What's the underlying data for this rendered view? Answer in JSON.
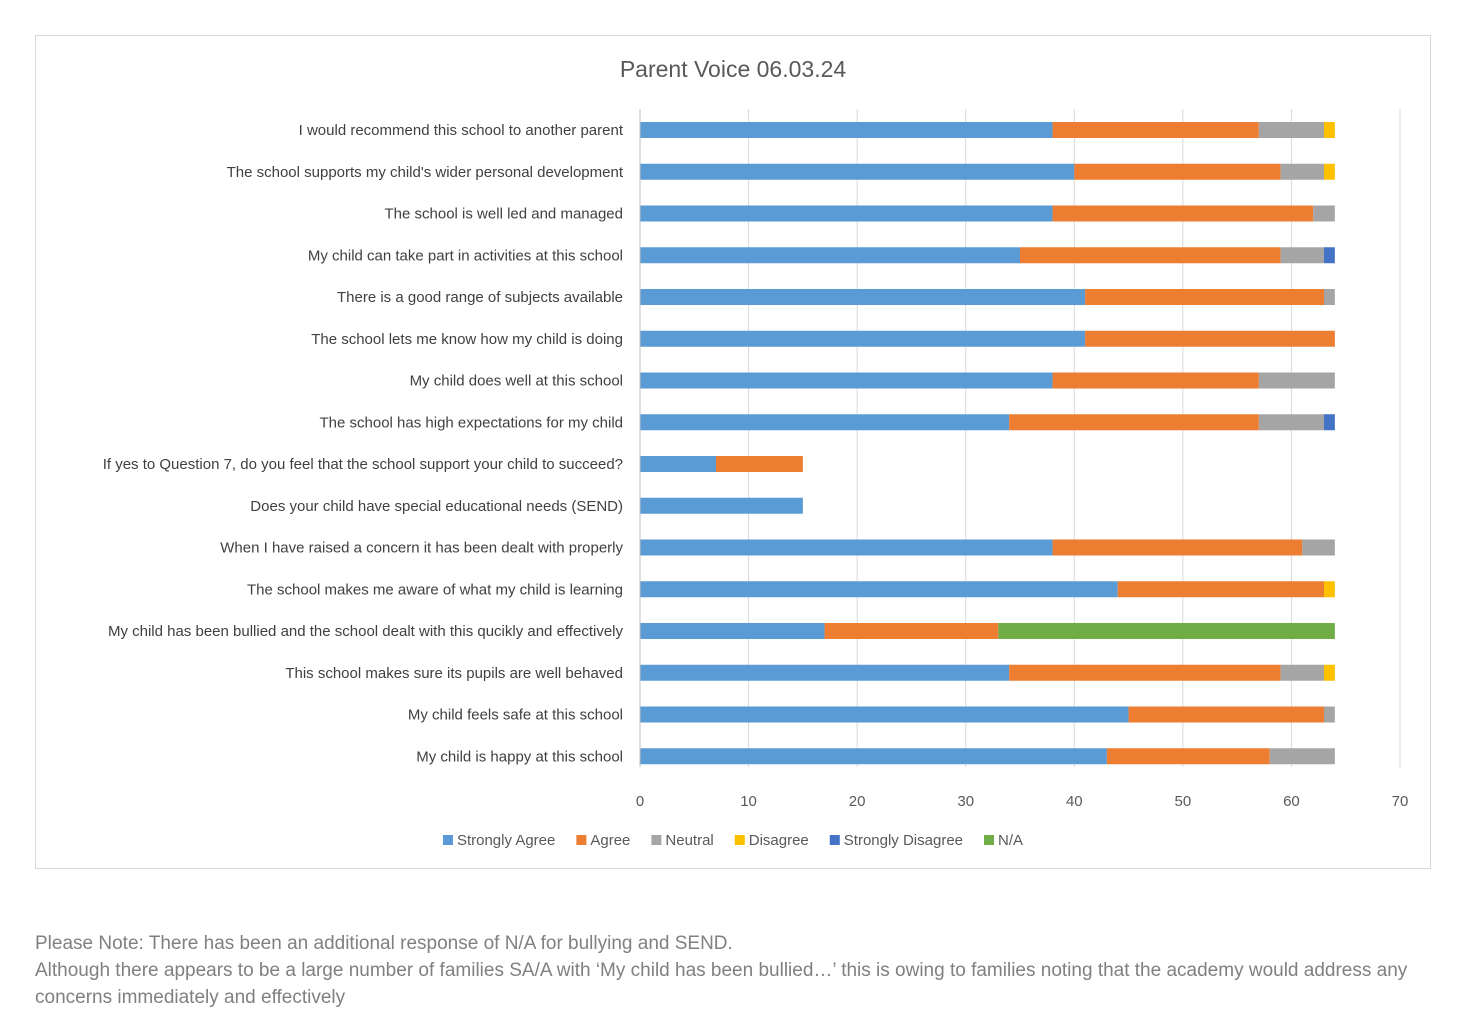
{
  "chart_data": {
    "type": "bar",
    "orientation": "horizontal",
    "stacked": true,
    "title": "Parent Voice 06.03.24",
    "xlabel": "",
    "ylabel": "",
    "xlim": [
      0,
      70
    ],
    "xticks": [
      0,
      10,
      20,
      30,
      40,
      50,
      60,
      70
    ],
    "grid": true,
    "legend_position": "bottom",
    "categories": [
      "I would recommend this school to another parent",
      "The school supports my child's wider personal development",
      "The school is well led and managed",
      "My child can take part in activities at this school",
      "There is a good range of subjects available",
      "The school lets me know how my child is doing",
      "My child does well at this school",
      "The school has high expectations for my child",
      "If yes to Question 7, do you feel that the school support your child to succeed?",
      "Does your child have special educational needs (SEND)",
      "When I have raised a concern it has been dealt with properly",
      "The school makes me aware of what my child is learning",
      "My child has been bullied and the school dealt with this qucikly and effectively",
      "This school makes sure its pupils are well behaved",
      "My child feels safe at this school",
      "My child is happy at this school"
    ],
    "series": [
      {
        "name": "Strongly Agree",
        "color": "#5B9BD5",
        "values": [
          38,
          40,
          38,
          35,
          41,
          41,
          38,
          34,
          7,
          15,
          38,
          44,
          17,
          34,
          45,
          43
        ]
      },
      {
        "name": "Agree",
        "color": "#ED7D31",
        "values": [
          19,
          19,
          24,
          24,
          22,
          23,
          19,
          23,
          8,
          0,
          23,
          19,
          16,
          25,
          18,
          15
        ]
      },
      {
        "name": "Neutral",
        "color": "#A5A5A5",
        "values": [
          6,
          4,
          2,
          4,
          1,
          0,
          7,
          6,
          0,
          0,
          3,
          0,
          0,
          4,
          1,
          6
        ]
      },
      {
        "name": "Disagree",
        "color": "#FFC000",
        "values": [
          1,
          1,
          0,
          0,
          0,
          0,
          0,
          0,
          0,
          0,
          0,
          1,
          0,
          1,
          0,
          0
        ]
      },
      {
        "name": "Strongly Disagree",
        "color": "#4472C4",
        "values": [
          0,
          0,
          0,
          1,
          0,
          0,
          0,
          1,
          0,
          0,
          0,
          0,
          0,
          0,
          0,
          0
        ]
      },
      {
        "name": "N/A",
        "color": "#70AD47",
        "values": [
          0,
          0,
          0,
          0,
          0,
          0,
          0,
          0,
          0,
          0,
          0,
          0,
          31,
          0,
          0,
          0
        ]
      }
    ]
  },
  "footnote": {
    "line1": "Please Note: There has been an additional response of N/A for bullying and SEND.",
    "line2": "Although there appears to be a large number of families SA/A with ‘My child has been bullied…’ this is owing to families noting that the academy would address any concerns immediately and effectively"
  }
}
